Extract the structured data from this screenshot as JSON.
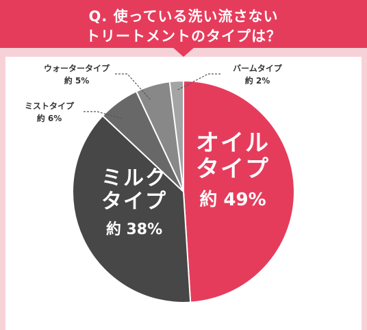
{
  "header": {
    "title_line1": "Q. 使っている洗い流さない",
    "title_line2": "トリートメントのタイプは？",
    "color": "#e63c5c"
  },
  "colors": {
    "background": "#f6d2d8",
    "panel": "#ffffff",
    "label_outside": "#333333",
    "label_inside": "#ffffff"
  },
  "chart_data": {
    "type": "pie",
    "title": "Q. 使っている洗い流さないトリートメントのタイプは？",
    "start_angle_deg": 0,
    "direction": "clockwise",
    "slices": [
      {
        "name": "オイルタイプ",
        "lines": [
          "オイル",
          "タイプ"
        ],
        "value_label": "約 49%",
        "value": 49,
        "color": "#e63c5c",
        "label_position": "inside"
      },
      {
        "name": "ミルクタイプ",
        "lines": [
          "ミルク",
          "タイプ"
        ],
        "value_label": "約 38%",
        "value": 38,
        "color": "#474747",
        "label_position": "inside"
      },
      {
        "name": "ミストタイプ",
        "lines": [
          "ミストタイプ"
        ],
        "value_label": "約 6%",
        "value": 6,
        "color": "#686868",
        "label_position": "outside-left"
      },
      {
        "name": "ウォータータイプ",
        "lines": [
          "ウォータータイプ"
        ],
        "value_label": "約 5%",
        "value": 5,
        "color": "#888888",
        "label_position": "outside-top-left"
      },
      {
        "name": "バームタイプ",
        "lines": [
          "バームタイプ"
        ],
        "value_label": "約 2%",
        "value": 2,
        "color": "#a4a4a4",
        "label_position": "outside-top-right"
      }
    ]
  }
}
